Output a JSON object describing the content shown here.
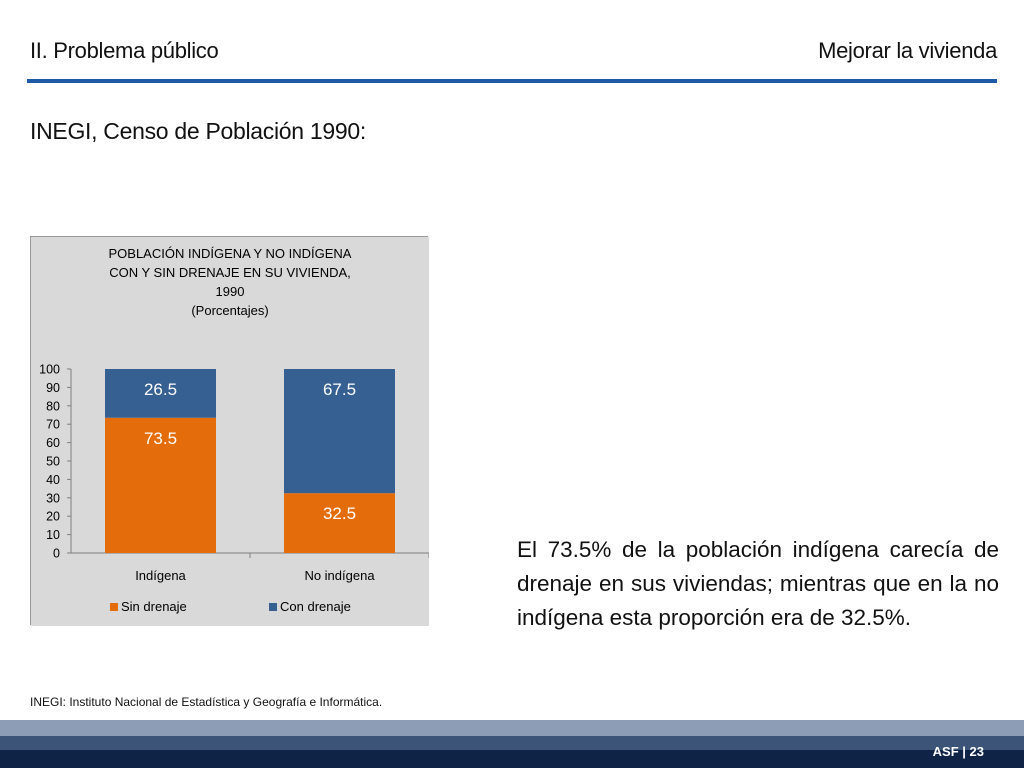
{
  "header": {
    "left_title": "II. Problema público",
    "right_title": "Mejorar la vivienda",
    "rule_color": "#1f5aa8"
  },
  "subtitle": "INEGI, Censo de Población 1990:",
  "chart_data": {
    "type": "bar",
    "stacked": true,
    "title_lines": [
      "POBLACIÓN INDÍGENA Y NO INDÍGENA",
      "CON Y SIN DRENAJE EN SU VIVIENDA,",
      "1990",
      "(Porcentajes)"
    ],
    "categories": [
      "Indígena",
      "No indígena"
    ],
    "series": [
      {
        "name": "Sin drenaje",
        "values": [
          73.5,
          32.5
        ],
        "color": "#e46c0a"
      },
      {
        "name": "Con drenaje",
        "values": [
          26.5,
          67.5
        ],
        "color": "#376092"
      }
    ],
    "ylim": [
      0,
      100
    ],
    "yticks": [
      0,
      10,
      20,
      30,
      40,
      50,
      60,
      70,
      80,
      90,
      100
    ],
    "data_labels": true,
    "legend_position": "bottom",
    "grid": false,
    "background_color": "#d9d9d9"
  },
  "body_text": "El 73.5% de la población indígena carecía de drenaje en sus viviendas; mientras que en la no indígena esta proporción era de 32.5%.",
  "footnote": "INEGI: Instituto Nacional de Estadística y Geografía e Informática.",
  "footer": {
    "label": "ASF | 23",
    "band_colors": [
      "#8d9db5",
      "#3b5478",
      "#0e2345"
    ]
  }
}
